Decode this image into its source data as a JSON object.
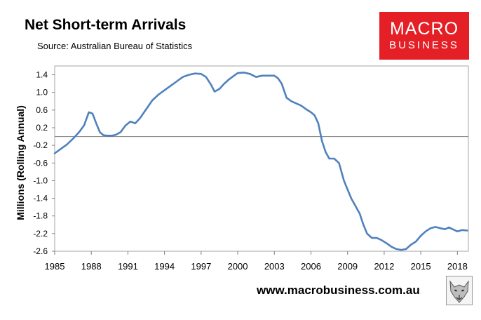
{
  "header": {
    "title": "Net Short-term Arrivals",
    "subtitle": "Source: Australian Bureau of Statistics"
  },
  "logo": {
    "line1": "MACRO",
    "line2": "BUSINESS",
    "color": "#e41f26"
  },
  "footer": {
    "url": "www.macrobusiness.com.au",
    "icon": "wolf-illustration-icon"
  },
  "chart_data": {
    "type": "line",
    "title": "Net Short-term Arrivals",
    "ylabel": "Millions (Rolling Annual)",
    "xlabel": "",
    "xlim": [
      1985,
      2018.9
    ],
    "ylim": [
      -2.6,
      1.6
    ],
    "yticks": [
      1.4,
      1.0,
      0.6,
      0.2,
      -0.2,
      -0.6,
      -1.0,
      -1.4,
      -1.8,
      -2.2,
      -2.6
    ],
    "ytick_labels": [
      "1.4",
      "1.0",
      "0.6",
      "0.2",
      "-0.2",
      "-0.6",
      "-1.0",
      "-1.4",
      "-1.8",
      "-2.2",
      "-2.6"
    ],
    "xticks": [
      1985,
      1988,
      1991,
      1994,
      1997,
      2000,
      2003,
      2006,
      2009,
      2012,
      2015,
      2018
    ],
    "xtick_labels": [
      "1985",
      "1988",
      "1991",
      "1994",
      "1997",
      "2000",
      "2003",
      "2006",
      "2009",
      "2012",
      "2015",
      "2018"
    ],
    "grid": false,
    "zero_line": true,
    "series": [
      {
        "color": "#4f81bd",
        "x": [
          1985.0,
          1985.5,
          1986.0,
          1986.5,
          1987.0,
          1987.4,
          1987.8,
          1988.1,
          1988.4,
          1988.7,
          1989.0,
          1989.3,
          1989.7,
          1990.0,
          1990.4,
          1990.8,
          1991.2,
          1991.6,
          1992.0,
          1992.5,
          1993.0,
          1993.5,
          1994.0,
          1994.5,
          1995.0,
          1995.5,
          1996.0,
          1996.5,
          1997.0,
          1997.4,
          1997.8,
          1998.1,
          1998.5,
          1998.9,
          1999.3,
          1999.7,
          2000.0,
          2000.5,
          2001.0,
          2001.5,
          2002.0,
          2002.5,
          2003.0,
          2003.3,
          2003.6,
          2004.0,
          2004.4,
          2004.8,
          2005.2,
          2005.6,
          2006.0,
          2006.3,
          2006.6,
          2006.9,
          2007.2,
          2007.5,
          2007.9,
          2008.3,
          2008.7,
          2009.0,
          2009.3,
          2009.7,
          2010.0,
          2010.3,
          2010.6,
          2011.0,
          2011.4,
          2011.8,
          2012.2,
          2012.6,
          2013.0,
          2013.4,
          2013.8,
          2014.2,
          2014.6,
          2015.0,
          2015.4,
          2015.8,
          2016.2,
          2016.6,
          2017.0,
          2017.3,
          2017.6,
          2018.0,
          2018.4,
          2018.8
        ],
        "y": [
          -0.38,
          -0.28,
          -0.18,
          -0.05,
          0.1,
          0.25,
          0.55,
          0.52,
          0.3,
          0.1,
          0.03,
          0.02,
          0.02,
          0.04,
          0.1,
          0.25,
          0.34,
          0.3,
          0.42,
          0.62,
          0.82,
          0.95,
          1.05,
          1.15,
          1.25,
          1.35,
          1.4,
          1.43,
          1.42,
          1.35,
          1.18,
          1.02,
          1.08,
          1.2,
          1.3,
          1.38,
          1.44,
          1.45,
          1.42,
          1.35,
          1.38,
          1.38,
          1.38,
          1.32,
          1.2,
          0.88,
          0.8,
          0.75,
          0.7,
          0.62,
          0.55,
          0.48,
          0.3,
          -0.1,
          -0.35,
          -0.5,
          -0.5,
          -0.6,
          -1.0,
          -1.2,
          -1.4,
          -1.6,
          -1.75,
          -2.0,
          -2.2,
          -2.3,
          -2.3,
          -2.35,
          -2.42,
          -2.5,
          -2.55,
          -2.57,
          -2.55,
          -2.45,
          -2.38,
          -2.25,
          -2.15,
          -2.08,
          -2.05,
          -2.08,
          -2.1,
          -2.06,
          -2.1,
          -2.15,
          -2.12,
          -2.13
        ]
      }
    ]
  }
}
